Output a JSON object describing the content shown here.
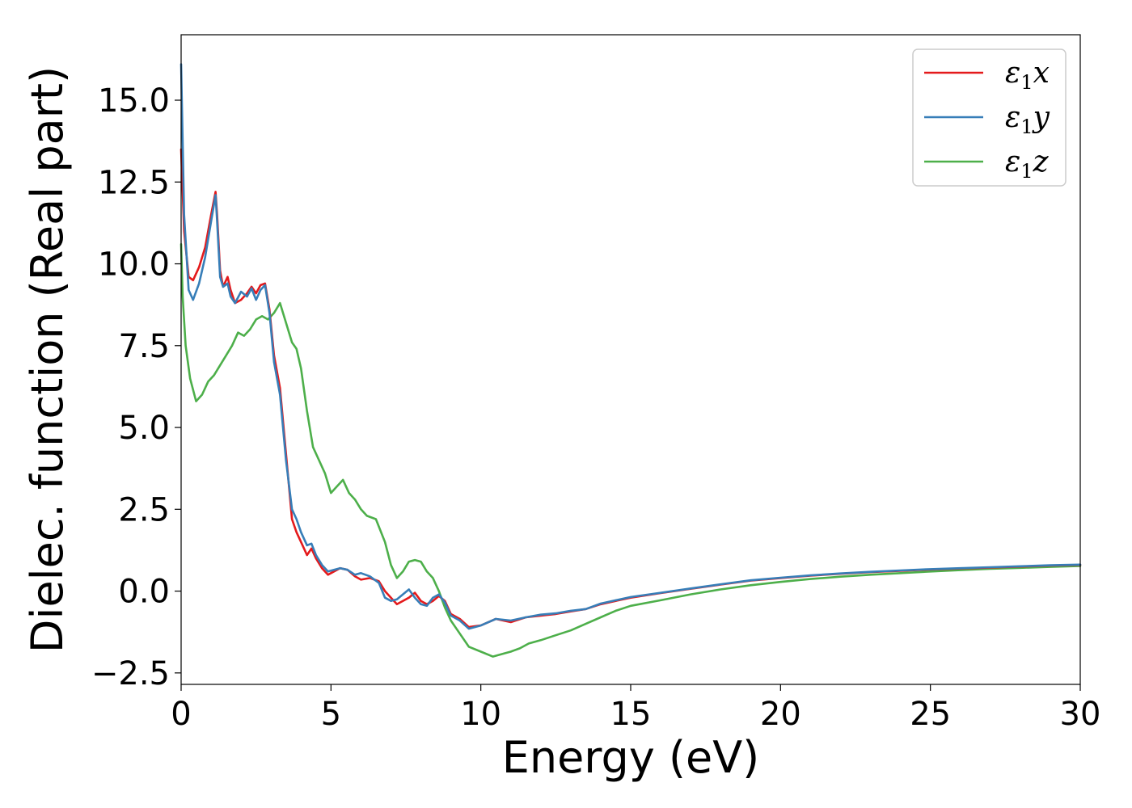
{
  "chart_data": {
    "type": "line",
    "title": "",
    "xlabel": "Energy (eV)",
    "ylabel": "Dielec. function (Real part)",
    "xlim": [
      0,
      30
    ],
    "ylim": [
      -2.85,
      17.0
    ],
    "xticks": [
      0,
      5,
      10,
      15,
      20,
      25,
      30
    ],
    "xtick_labels": [
      "0",
      "5",
      "10",
      "15",
      "20",
      "25",
      "30"
    ],
    "yticks": [
      -2.5,
      0.0,
      2.5,
      5.0,
      7.5,
      10.0,
      12.5,
      15.0
    ],
    "ytick_labels": [
      "−2.5",
      "0.0",
      "2.5",
      "5.0",
      "7.5",
      "10.0",
      "12.5",
      "15.0"
    ],
    "grid": false,
    "legend_position": "top-right",
    "series": [
      {
        "name": "ε1x",
        "legend_base": "ε",
        "legend_sub": "1",
        "legend_tail": "x",
        "color": "#e41a1c",
        "x": [
          0.0,
          0.1,
          0.25,
          0.4,
          0.6,
          0.8,
          1.0,
          1.15,
          1.2,
          1.3,
          1.4,
          1.55,
          1.65,
          1.8,
          2.0,
          2.2,
          2.35,
          2.5,
          2.65,
          2.8,
          2.95,
          3.1,
          3.3,
          3.5,
          3.7,
          3.85,
          4.0,
          4.2,
          4.35,
          4.5,
          4.7,
          4.9,
          5.1,
          5.3,
          5.55,
          5.8,
          6.0,
          6.3,
          6.6,
          6.8,
          7.0,
          7.2,
          7.4,
          7.6,
          7.8,
          8.0,
          8.2,
          8.4,
          8.6,
          8.8,
          9.0,
          9.3,
          9.6,
          10.0,
          10.5,
          11.0,
          11.5,
          12.0,
          12.5,
          13.0,
          13.5,
          14.0,
          14.5,
          15.0,
          16.0,
          17.0,
          18.0,
          19.0,
          20.0,
          21.0,
          22.0,
          23.0,
          24.0,
          25.0,
          26.0,
          27.0,
          28.0,
          29.0,
          30.0
        ],
        "y": [
          13.5,
          11.0,
          9.6,
          9.5,
          9.9,
          10.5,
          11.5,
          12.2,
          11.5,
          9.8,
          9.3,
          9.6,
          9.2,
          8.8,
          8.9,
          9.1,
          9.3,
          9.1,
          9.35,
          9.4,
          8.6,
          7.2,
          6.2,
          4.2,
          2.2,
          1.8,
          1.5,
          1.1,
          1.3,
          1.0,
          0.7,
          0.5,
          0.6,
          0.7,
          0.65,
          0.45,
          0.35,
          0.4,
          0.3,
          0.0,
          -0.2,
          -0.4,
          -0.3,
          -0.2,
          -0.05,
          -0.3,
          -0.4,
          -0.3,
          -0.15,
          -0.3,
          -0.7,
          -0.85,
          -1.1,
          -1.05,
          -0.85,
          -0.95,
          -0.8,
          -0.75,
          -0.7,
          -0.62,
          -0.55,
          -0.4,
          -0.3,
          -0.2,
          -0.06,
          0.07,
          0.2,
          0.32,
          0.4,
          0.47,
          0.53,
          0.58,
          0.62,
          0.66,
          0.69,
          0.72,
          0.75,
          0.78,
          0.8
        ]
      },
      {
        "name": "ε1y",
        "legend_base": "ε",
        "legend_sub": "1",
        "legend_tail": "y",
        "color": "#377eb8",
        "x": [
          0.0,
          0.1,
          0.25,
          0.4,
          0.6,
          0.8,
          1.0,
          1.15,
          1.2,
          1.3,
          1.4,
          1.55,
          1.65,
          1.8,
          2.0,
          2.2,
          2.35,
          2.5,
          2.65,
          2.8,
          2.95,
          3.1,
          3.3,
          3.5,
          3.7,
          3.85,
          4.0,
          4.2,
          4.35,
          4.5,
          4.7,
          4.9,
          5.1,
          5.3,
          5.55,
          5.8,
          6.0,
          6.3,
          6.6,
          6.8,
          7.0,
          7.2,
          7.4,
          7.6,
          7.8,
          8.0,
          8.2,
          8.4,
          8.6,
          8.8,
          9.0,
          9.3,
          9.6,
          10.0,
          10.5,
          11.0,
          11.5,
          12.0,
          12.5,
          13.0,
          13.5,
          14.0,
          14.5,
          15.0,
          16.0,
          17.0,
          18.0,
          19.0,
          20.0,
          21.0,
          22.0,
          23.0,
          24.0,
          25.0,
          26.0,
          27.0,
          28.0,
          29.0,
          30.0
        ],
        "y": [
          16.1,
          11.5,
          9.2,
          8.9,
          9.4,
          10.2,
          11.3,
          12.1,
          11.3,
          9.6,
          9.3,
          9.4,
          9.0,
          8.8,
          9.15,
          9.0,
          9.25,
          8.9,
          9.2,
          9.35,
          8.5,
          7.0,
          6.0,
          4.0,
          2.5,
          2.2,
          1.8,
          1.4,
          1.45,
          1.1,
          0.8,
          0.6,
          0.65,
          0.7,
          0.65,
          0.5,
          0.55,
          0.45,
          0.25,
          -0.2,
          -0.3,
          -0.25,
          -0.1,
          0.05,
          -0.2,
          -0.4,
          -0.45,
          -0.2,
          -0.1,
          -0.35,
          -0.75,
          -0.9,
          -1.15,
          -1.05,
          -0.85,
          -0.9,
          -0.8,
          -0.72,
          -0.68,
          -0.6,
          -0.55,
          -0.38,
          -0.28,
          -0.18,
          -0.05,
          0.08,
          0.21,
          0.33,
          0.41,
          0.48,
          0.54,
          0.59,
          0.63,
          0.67,
          0.7,
          0.73,
          0.76,
          0.79,
          0.81
        ]
      },
      {
        "name": "ε1z",
        "legend_base": "ε",
        "legend_sub": "1",
        "legend_tail": "z",
        "color": "#4daf4a",
        "x": [
          0.0,
          0.05,
          0.15,
          0.3,
          0.5,
          0.7,
          0.9,
          1.1,
          1.3,
          1.5,
          1.7,
          1.9,
          2.1,
          2.3,
          2.5,
          2.7,
          2.9,
          3.1,
          3.3,
          3.5,
          3.7,
          3.85,
          4.0,
          4.2,
          4.4,
          4.6,
          4.8,
          5.0,
          5.2,
          5.4,
          5.6,
          5.8,
          6.0,
          6.2,
          6.5,
          6.8,
          7.0,
          7.2,
          7.4,
          7.6,
          7.8,
          8.0,
          8.2,
          8.4,
          8.6,
          8.8,
          9.0,
          9.3,
          9.6,
          10.0,
          10.4,
          10.8,
          11.0,
          11.3,
          11.6,
          12.0,
          12.5,
          13.0,
          13.5,
          14.0,
          14.5,
          15.0,
          16.0,
          17.0,
          18.0,
          19.0,
          20.0,
          21.0,
          22.0,
          23.0,
          24.0,
          25.0,
          26.0,
          27.0,
          28.0,
          29.0,
          30.0
        ],
        "y": [
          10.6,
          9.0,
          7.5,
          6.5,
          5.8,
          6.0,
          6.4,
          6.6,
          6.9,
          7.2,
          7.5,
          7.9,
          7.8,
          8.0,
          8.3,
          8.4,
          8.3,
          8.5,
          8.8,
          8.2,
          7.6,
          7.4,
          6.8,
          5.5,
          4.4,
          4.0,
          3.6,
          3.0,
          3.2,
          3.4,
          3.0,
          2.8,
          2.5,
          2.3,
          2.2,
          1.5,
          0.8,
          0.4,
          0.6,
          0.9,
          0.95,
          0.9,
          0.6,
          0.4,
          0.0,
          -0.5,
          -0.9,
          -1.3,
          -1.7,
          -1.85,
          -2.0,
          -1.9,
          -1.85,
          -1.75,
          -1.6,
          -1.5,
          -1.35,
          -1.2,
          -1.0,
          -0.8,
          -0.6,
          -0.45,
          -0.28,
          -0.1,
          0.05,
          0.18,
          0.28,
          0.37,
          0.44,
          0.5,
          0.55,
          0.6,
          0.64,
          0.68,
          0.71,
          0.74,
          0.77
        ]
      }
    ]
  }
}
